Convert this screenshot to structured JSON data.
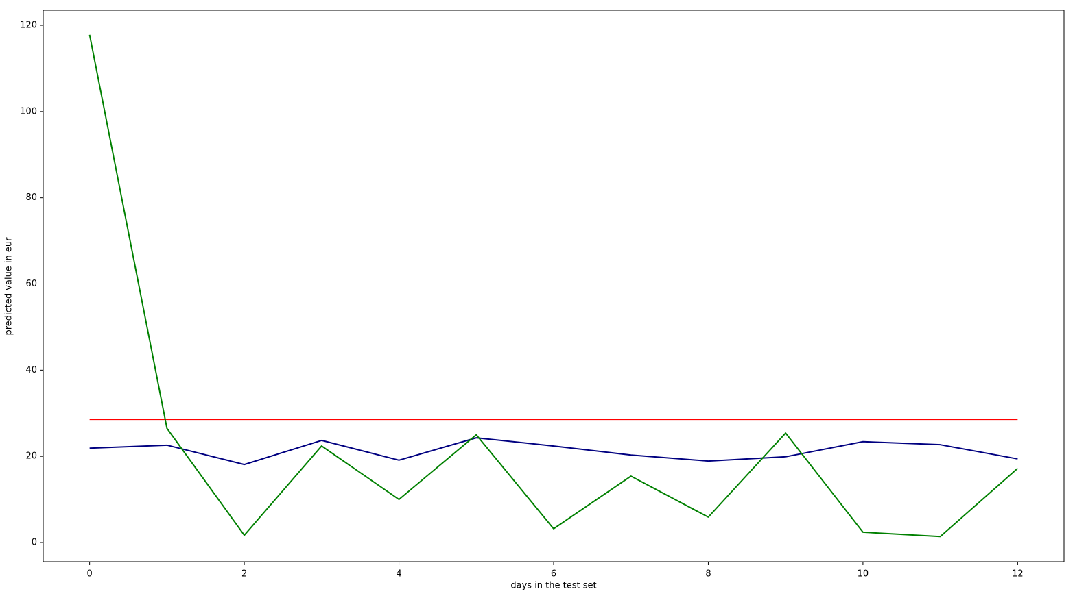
{
  "chart_data": {
    "type": "line",
    "x_label": "days in the test set",
    "y_label": "predicted value in eur",
    "x": [
      0,
      1,
      2,
      3,
      4,
      5,
      6,
      7,
      8,
      9,
      10,
      11,
      12
    ],
    "series": [
      {
        "color": "#ff0000",
        "values": [
          28.6,
          28.6,
          28.6,
          28.6,
          28.6,
          28.6,
          28.6,
          28.6,
          28.6,
          28.6,
          28.6,
          28.6,
          28.6
        ]
      },
      {
        "color": "#000080",
        "values": [
          21.9,
          22.6,
          18.1,
          23.7,
          19.1,
          24.3,
          22.4,
          20.3,
          18.9,
          19.9,
          23.4,
          22.7,
          19.4
        ]
      },
      {
        "color": "#008000",
        "values": [
          117.8,
          26.5,
          1.7,
          22.4,
          10.0,
          25.0,
          3.2,
          15.4,
          5.9,
          25.4,
          2.4,
          1.4,
          17.2
        ]
      }
    ],
    "xlim": [
      -0.6,
      12.6
    ],
    "ylim": [
      -4.45,
      123.5
    ],
    "xticks": [
      0,
      2,
      4,
      6,
      8,
      10,
      12
    ],
    "yticks": [
      0,
      20,
      40,
      60,
      80,
      100,
      120
    ],
    "grid": false
  }
}
